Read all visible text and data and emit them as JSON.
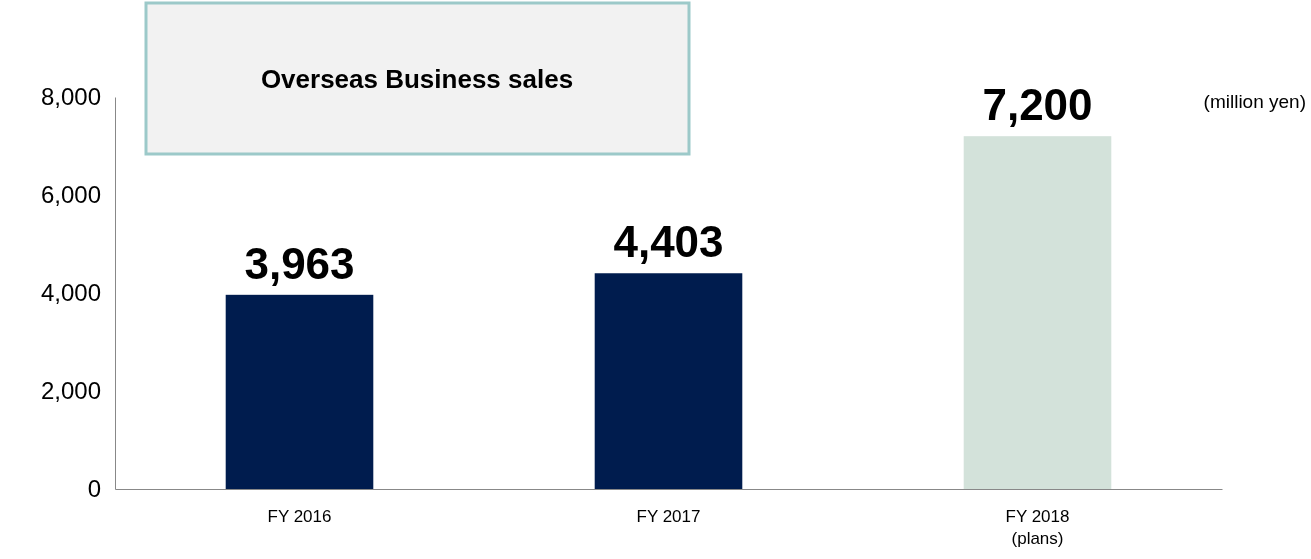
{
  "chart_data": {
    "type": "bar",
    "title": "Overseas Business sales",
    "annotations": [
      "(million yen)"
    ],
    "categories": [
      "FY 2016",
      "FY 2017",
      "FY 2018\n(plans)"
    ],
    "values": [
      3963,
      4403,
      7200
    ],
    "colors": [
      "#001c4e",
      "#001c4e",
      "#d3e2da"
    ],
    "ylim": [
      0,
      8000
    ],
    "yticks": [
      {
        "value": 0,
        "label": "0"
      },
      {
        "value": 2000,
        "label": "2,000"
      },
      {
        "value": 4000,
        "label": "4,000"
      },
      {
        "value": 6000,
        "label": "6,000"
      },
      {
        "value": 8000,
        "label": "8,000"
      }
    ],
    "value_labels": [
      "3,963",
      "4,403",
      "7,200"
    ],
    "grid": false
  }
}
